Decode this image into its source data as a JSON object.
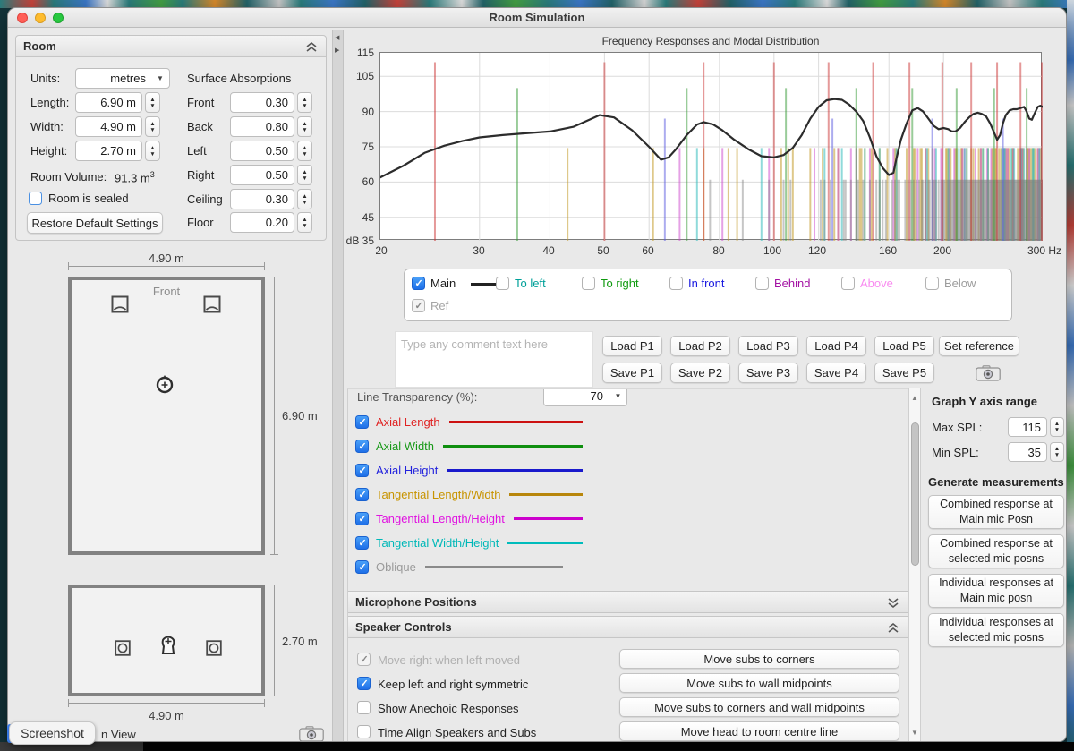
{
  "window": {
    "title": "Room Simulation"
  },
  "room_panel": {
    "title": "Room",
    "units_label": "Units:",
    "units_value": "metres",
    "dims": [
      {
        "label": "Length:",
        "value": "6.90 m"
      },
      {
        "label": "Width:",
        "value": "4.90 m"
      },
      {
        "label": "Height:",
        "value": "2.70 m"
      }
    ],
    "volume_label": "Room Volume:",
    "volume_value": "91.3 m",
    "volume_sup": "3",
    "sealed_label": "Room is sealed",
    "restore_button": "Restore Default Settings",
    "absorptions_title": "Surface Absorptions",
    "absorptions": [
      {
        "label": "Front",
        "value": "0.30"
      },
      {
        "label": "Back",
        "value": "0.80"
      },
      {
        "label": "Left",
        "value": "0.50"
      },
      {
        "label": "Right",
        "value": "0.50"
      },
      {
        "label": "Ceiling",
        "value": "0.30"
      },
      {
        "label": "Floor",
        "value": "0.20"
      }
    ]
  },
  "diagrams": {
    "top_view": {
      "front_label": "Front",
      "width_dim": "4.90 m",
      "length_dim": "6.90 m"
    },
    "side_view": {
      "height_dim": "2.70 m",
      "width_dim": "4.90 m"
    },
    "partial_view_label": "n View",
    "screenshot_tooltip": "Screenshot"
  },
  "graph": {
    "title": "Frequency Responses and Modal Distribution",
    "y_ticks": [
      "115",
      "105",
      "90",
      "75",
      "60",
      "45"
    ],
    "y_bottom_label": "dB 35",
    "x_ticks": [
      "20",
      "30",
      "40",
      "50",
      "60",
      "80",
      "100",
      "120",
      "160",
      "200",
      "300 Hz"
    ]
  },
  "legend": {
    "items": [
      {
        "label": "Main",
        "color": "#1c1c1c",
        "checked": true
      },
      {
        "label": "To left",
        "color": "#00a099",
        "checked": false
      },
      {
        "label": "To right",
        "color": "#109a10",
        "checked": false
      },
      {
        "label": "In front",
        "color": "#1a1ae0",
        "checked": false
      },
      {
        "label": "Behind",
        "color": "#a312a3",
        "checked": false
      },
      {
        "label": "Above",
        "color": "#f98af0",
        "checked": false
      },
      {
        "label": "Below",
        "color": "#9c9c9c",
        "checked": false
      }
    ],
    "ref_label": "Ref"
  },
  "comment": {
    "placeholder": "Type any comment text here"
  },
  "presets": {
    "load": [
      "Load P1",
      "Load P2",
      "Load P3",
      "Load P4",
      "Load P5"
    ],
    "save": [
      "Save P1",
      "Save P2",
      "Save P3",
      "Save P4",
      "Save P5"
    ],
    "set_reference": "Set reference"
  },
  "controls": {
    "transparency_label": "Line Transparency (%):",
    "transparency_value": "70",
    "mode_rows": [
      {
        "label": "Axial Length",
        "text_color": "#e02222",
        "line_color": "#cc1111"
      },
      {
        "label": "Axial Width",
        "text_color": "#189918",
        "line_color": "#0f8f0f"
      },
      {
        "label": "Axial Height",
        "text_color": "#2222dd",
        "line_color": "#1a1acc"
      },
      {
        "label": "Tangential Length/Width",
        "text_color": "#c89400",
        "line_color": "#b8860b"
      },
      {
        "label": "Tangential Length/Height",
        "text_color": "#e012e0",
        "line_color": "#cc00cc"
      },
      {
        "label": "Tangential Width/Height",
        "text_color": "#00b8b8",
        "line_color": "#00bcbc"
      },
      {
        "label": "Oblique",
        "text_color": "#9a9a9a",
        "line_color": "#8a8a8a"
      }
    ]
  },
  "sections": {
    "microphone": "Microphone Positions",
    "speaker": "Speaker Controls"
  },
  "speaker_controls": {
    "checkboxes": [
      {
        "label": "Move right when left moved",
        "state": "checked-disabled"
      },
      {
        "label": "Keep left and right symmetric",
        "state": "checked"
      },
      {
        "label": "Show Anechoic Responses",
        "state": "unchecked"
      },
      {
        "label": "Time Align Speakers and Subs",
        "state": "unchecked"
      }
    ],
    "buttons": [
      "Move subs to corners",
      "Move subs to wall midpoints",
      "Move subs to corners and wall midpoints",
      "Move head to room centre line"
    ]
  },
  "right_panel": {
    "y_axis_title": "Graph Y axis range",
    "max_spl_label": "Max SPL:",
    "max_spl_value": "115",
    "min_spl_label": "Min SPL:",
    "min_spl_value": "35",
    "generate_title": "Generate measurements",
    "buttons": [
      "Combined response at Main mic Posn",
      "Combined response at selected mic posns",
      "Individual responses at Main mic posn",
      "Individual responses at selected mic posns"
    ]
  },
  "chart_data": {
    "type": "line",
    "title": "Frequency Responses and Modal Distribution",
    "x_axis": {
      "scale": "log",
      "min": 20,
      "max": 300,
      "unit": "Hz",
      "ticks": [
        20,
        30,
        40,
        50,
        60,
        80,
        100,
        120,
        160,
        200,
        300
      ]
    },
    "y_axis": {
      "unit": "dB SPL",
      "min": 35,
      "max": 115,
      "gridlines": [
        45,
        60,
        75,
        90,
        105
      ]
    },
    "main_response": [
      [
        20,
        62
      ],
      [
        22,
        67
      ],
      [
        24,
        72.5
      ],
      [
        26,
        75.5
      ],
      [
        28,
        77.5
      ],
      [
        30,
        79
      ],
      [
        33,
        80
      ],
      [
        36,
        80.7
      ],
      [
        40,
        81.5
      ],
      [
        44,
        83.5
      ],
      [
        47,
        86.5
      ],
      [
        49,
        88.5
      ],
      [
        52,
        87.5
      ],
      [
        56,
        82
      ],
      [
        60,
        75
      ],
      [
        63,
        69.5
      ],
      [
        65,
        70.5
      ],
      [
        67,
        74
      ],
      [
        70,
        80
      ],
      [
        73,
        84.5
      ],
      [
        75,
        85.5
      ],
      [
        78,
        84.5
      ],
      [
        81,
        82
      ],
      [
        85,
        78
      ],
      [
        90,
        74
      ],
      [
        95,
        71
      ],
      [
        100,
        70.5
      ],
      [
        104,
        71.5
      ],
      [
        108,
        74.5
      ],
      [
        112,
        80
      ],
      [
        116,
        87
      ],
      [
        120,
        92
      ],
      [
        124,
        94.8
      ],
      [
        128,
        95.3
      ],
      [
        132,
        95
      ],
      [
        136,
        93
      ],
      [
        140,
        90
      ],
      [
        144,
        86
      ],
      [
        148,
        79
      ],
      [
        152,
        71
      ],
      [
        156,
        66
      ],
      [
        160,
        63
      ],
      [
        163,
        64
      ],
      [
        165,
        70
      ],
      [
        168,
        78
      ],
      [
        172,
        85
      ],
      [
        176,
        90.5
      ],
      [
        180,
        91.5
      ],
      [
        184,
        90
      ],
      [
        188,
        87
      ],
      [
        192,
        84
      ],
      [
        196,
        82.5
      ],
      [
        200,
        83
      ],
      [
        204,
        82.5
      ],
      [
        207,
        81.5
      ],
      [
        210,
        81.5
      ],
      [
        214,
        83
      ],
      [
        218,
        85.5
      ],
      [
        222,
        87.5
      ],
      [
        226,
        89
      ],
      [
        230,
        89.5
      ],
      [
        234,
        89
      ],
      [
        238,
        88
      ],
      [
        242,
        85
      ],
      [
        246,
        81
      ],
      [
        249,
        78
      ],
      [
        252,
        80
      ],
      [
        255,
        85
      ],
      [
        258,
        88.5
      ],
      [
        262,
        90.5
      ],
      [
        266,
        91
      ],
      [
        270,
        91
      ],
      [
        274,
        91.5
      ],
      [
        278,
        92
      ],
      [
        281,
        90
      ],
      [
        284,
        87
      ],
      [
        287,
        86.5
      ],
      [
        290,
        89
      ],
      [
        294,
        92
      ],
      [
        297,
        92.5
      ],
      [
        300,
        92
      ]
    ],
    "modal_lines": [
      {
        "name": "tangential-length-width",
        "color": "#c39a2a",
        "opacity": 0.55,
        "top_db": 74.5,
        "freqs": [
          43,
          61,
          75,
          83,
          86,
          103,
          106,
          108,
          116,
          122,
          128,
          130,
          142,
          143,
          145,
          149,
          154,
          159,
          164,
          165,
          172,
          177,
          178,
          182,
          183,
          186,
          188,
          191,
          202,
          203,
          204,
          206,
          210,
          211,
          215,
          216,
          220,
          224,
          226,
          231,
          233,
          235,
          240,
          244,
          245,
          247,
          248,
          251,
          253,
          257,
          259,
          261,
          265,
          266,
          271,
          274,
          276,
          277,
          282,
          283,
          285,
          287,
          289,
          291,
          294,
          297
        ]
      },
      {
        "name": "tangential-length-height",
        "color": "#cc44cc",
        "opacity": 0.5,
        "top_db": 74.5,
        "freqs": [
          68,
          81,
          98,
          118,
          130,
          137,
          140,
          148,
          163,
          180,
          186,
          193,
          198,
          199,
          205,
          209,
          216,
          218,
          228,
          233,
          239,
          243,
          256,
          258,
          260,
          266,
          274,
          276,
          281,
          284,
          294,
          296
        ]
      },
      {
        "name": "tangential-width-height",
        "color": "#33bbbb",
        "opacity": 0.55,
        "top_db": 74.5,
        "freqs": [
          73,
          95,
          123,
          132,
          145,
          154,
          165,
          187,
          194,
          204,
          213,
          218,
          220,
          235,
          240,
          254,
          256,
          257,
          264,
          267,
          275,
          278,
          288,
          289,
          296
        ]
      },
      {
        "name": "oblique",
        "color": "#808080",
        "opacity": 0.45,
        "top_db": 61,
        "freqs": [
          77,
          88,
          98,
          104,
          107,
          121,
          123,
          126,
          133,
          134,
          137,
          141,
          144,
          148,
          152,
          154,
          156,
          158,
          162,
          164,
          166,
          167,
          171,
          173,
          175,
          177,
          179,
          181,
          183,
          184,
          186,
          188,
          189,
          191,
          192,
          193,
          194,
          196,
          198,
          199,
          200,
          201,
          203,
          204,
          205,
          206,
          207,
          208,
          209,
          210,
          211,
          212,
          213,
          214,
          215,
          216,
          217,
          218,
          219,
          220,
          221,
          222,
          223,
          224,
          225,
          226,
          227,
          228,
          229,
          230,
          231,
          232,
          233,
          234,
          235,
          236,
          237,
          238,
          239,
          240,
          241,
          242,
          243,
          244,
          245,
          246,
          247,
          248,
          249,
          250,
          251,
          252,
          253,
          254,
          255,
          256,
          257,
          258,
          259,
          260,
          261,
          262,
          263,
          264,
          265,
          266,
          267,
          268,
          269,
          270,
          271,
          272,
          273,
          274,
          275,
          276,
          277,
          278,
          279,
          280,
          281,
          282,
          283,
          284,
          285,
          286,
          287,
          288,
          289,
          290,
          291,
          292,
          293,
          294,
          295,
          296,
          297,
          298,
          299,
          300
        ]
      },
      {
        "name": "axial-length",
        "color": "#cc3333",
        "opacity": 0.5,
        "top_db": 111,
        "freqs": [
          25,
          50,
          75,
          100,
          125,
          150,
          174,
          199,
          224,
          249,
          274,
          299
        ]
      },
      {
        "name": "axial-width",
        "color": "#339933",
        "opacity": 0.5,
        "top_db": 100,
        "freqs": [
          35,
          70,
          105,
          140,
          176,
          211,
          246,
          281
        ]
      },
      {
        "name": "axial-height",
        "color": "#5a5ae0",
        "opacity": 0.5,
        "top_db": 87,
        "freqs": [
          64,
          127,
          191,
          255
        ]
      }
    ]
  }
}
